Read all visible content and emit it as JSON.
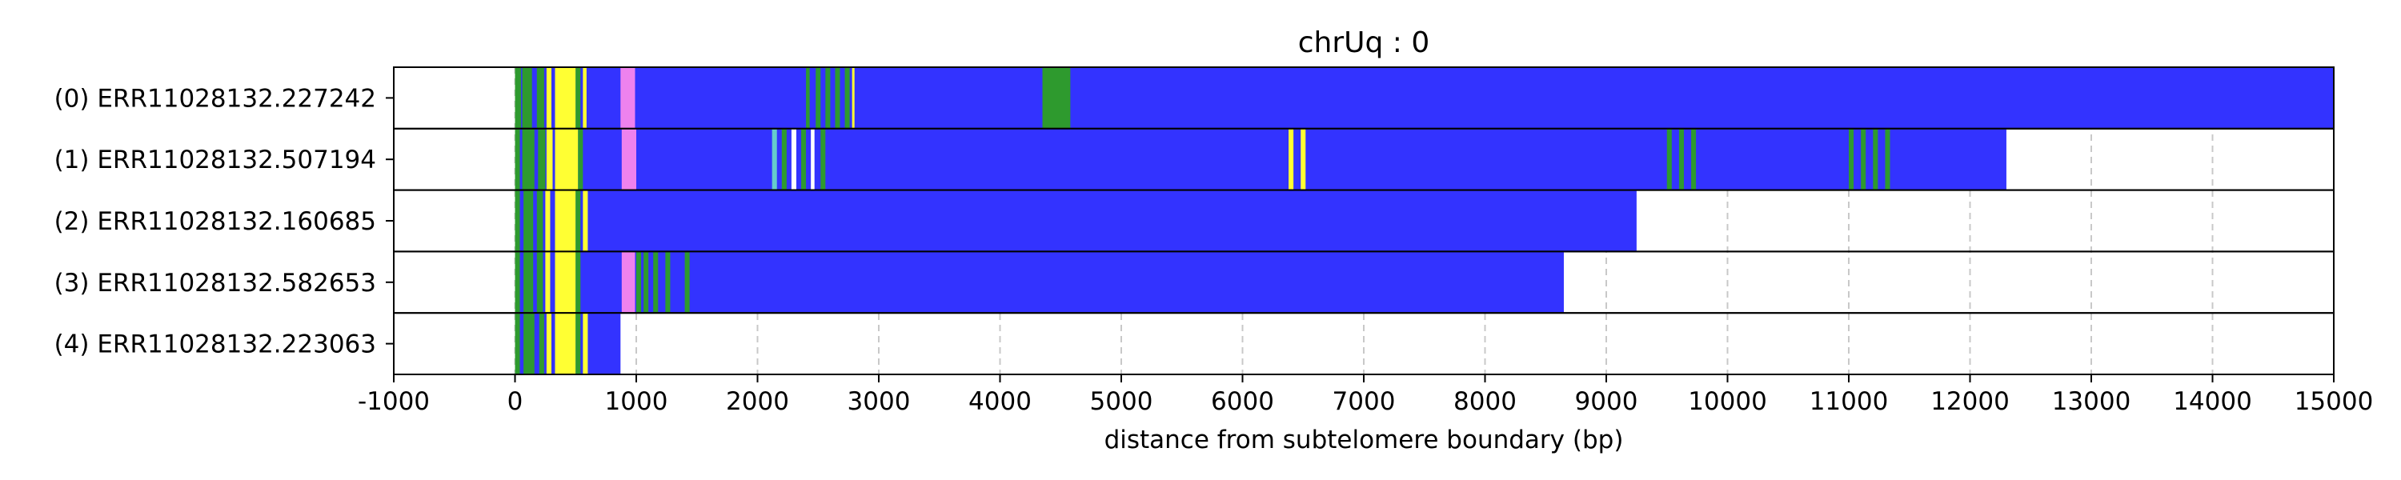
{
  "chart_data": {
    "type": "heatmap",
    "title": "chrUq : 0",
    "xlabel": "distance from subtelomere boundary (bp)",
    "ylabel": "",
    "xlim": [
      -1000,
      15000
    ],
    "xticks": [
      -1000,
      0,
      1000,
      2000,
      3000,
      4000,
      5000,
      6000,
      7000,
      8000,
      9000,
      10000,
      11000,
      12000,
      13000,
      14000,
      15000
    ],
    "grid": "vertical dashed",
    "colors": {
      "blue": "#3333ff",
      "green": "#2e9a2e",
      "yellow": "#ffff33",
      "pink": "#ee82ee",
      "cyan": "#66cccc",
      "white": "#ffffff"
    },
    "reads": [
      {
        "label": "(0) ERR11028132.227242",
        "start": 0,
        "end": 15000,
        "base": "blue",
        "segments": [
          {
            "x0": 0,
            "x1": 50,
            "color": "green"
          },
          {
            "x0": 60,
            "x1": 140,
            "color": "green"
          },
          {
            "x0": 180,
            "x1": 240,
            "color": "green"
          },
          {
            "x0": 260,
            "x1": 300,
            "color": "yellow"
          },
          {
            "x0": 330,
            "x1": 500,
            "color": "yellow"
          },
          {
            "x0": 500,
            "x1": 540,
            "color": "green"
          },
          {
            "x0": 560,
            "x1": 590,
            "color": "yellow"
          },
          {
            "x0": 870,
            "x1": 990,
            "color": "pink"
          },
          {
            "x0": 2400,
            "x1": 2430,
            "color": "green"
          },
          {
            "x0": 2480,
            "x1": 2520,
            "color": "green"
          },
          {
            "x0": 2560,
            "x1": 2600,
            "color": "green"
          },
          {
            "x0": 2640,
            "x1": 2680,
            "color": "green"
          },
          {
            "x0": 2720,
            "x1": 2760,
            "color": "green"
          },
          {
            "x0": 2780,
            "x1": 2800,
            "color": "yellow"
          },
          {
            "x0": 4350,
            "x1": 4580,
            "color": "green"
          }
        ]
      },
      {
        "label": "(1) ERR11028132.507194",
        "start": 0,
        "end": 12300,
        "base": "blue",
        "segments": [
          {
            "x0": 0,
            "x1": 40,
            "color": "green"
          },
          {
            "x0": 60,
            "x1": 160,
            "color": "green"
          },
          {
            "x0": 190,
            "x1": 250,
            "color": "green"
          },
          {
            "x0": 260,
            "x1": 310,
            "color": "yellow"
          },
          {
            "x0": 330,
            "x1": 520,
            "color": "yellow"
          },
          {
            "x0": 520,
            "x1": 560,
            "color": "green"
          },
          {
            "x0": 880,
            "x1": 1000,
            "color": "pink"
          },
          {
            "x0": 2120,
            "x1": 2160,
            "color": "cyan"
          },
          {
            "x0": 2200,
            "x1": 2240,
            "color": "green"
          },
          {
            "x0": 2280,
            "x1": 2320,
            "color": "white"
          },
          {
            "x0": 2360,
            "x1": 2400,
            "color": "green"
          },
          {
            "x0": 2440,
            "x1": 2470,
            "color": "white"
          },
          {
            "x0": 2520,
            "x1": 2560,
            "color": "green"
          },
          {
            "x0": 6380,
            "x1": 6420,
            "color": "yellow"
          },
          {
            "x0": 6480,
            "x1": 6520,
            "color": "yellow"
          },
          {
            "x0": 9500,
            "x1": 9540,
            "color": "green"
          },
          {
            "x0": 9600,
            "x1": 9640,
            "color": "green"
          },
          {
            "x0": 9700,
            "x1": 9740,
            "color": "green"
          },
          {
            "x0": 11000,
            "x1": 11040,
            "color": "green"
          },
          {
            "x0": 11100,
            "x1": 11140,
            "color": "green"
          },
          {
            "x0": 11200,
            "x1": 11240,
            "color": "green"
          },
          {
            "x0": 11300,
            "x1": 11340,
            "color": "green"
          }
        ]
      },
      {
        "label": "(2) ERR11028132.160685",
        "start": 0,
        "end": 9250,
        "base": "blue",
        "segments": [
          {
            "x0": 0,
            "x1": 40,
            "color": "green"
          },
          {
            "x0": 70,
            "x1": 150,
            "color": "green"
          },
          {
            "x0": 180,
            "x1": 230,
            "color": "green"
          },
          {
            "x0": 250,
            "x1": 290,
            "color": "yellow"
          },
          {
            "x0": 330,
            "x1": 500,
            "color": "yellow"
          },
          {
            "x0": 500,
            "x1": 540,
            "color": "green"
          },
          {
            "x0": 560,
            "x1": 600,
            "color": "yellow"
          }
        ]
      },
      {
        "label": "(3) ERR11028132.582653",
        "start": 0,
        "end": 8650,
        "base": "blue",
        "segments": [
          {
            "x0": 0,
            "x1": 40,
            "color": "green"
          },
          {
            "x0": 70,
            "x1": 150,
            "color": "green"
          },
          {
            "x0": 180,
            "x1": 230,
            "color": "green"
          },
          {
            "x0": 250,
            "x1": 290,
            "color": "yellow"
          },
          {
            "x0": 330,
            "x1": 500,
            "color": "yellow"
          },
          {
            "x0": 500,
            "x1": 540,
            "color": "green"
          },
          {
            "x0": 880,
            "x1": 990,
            "color": "pink"
          },
          {
            "x0": 1000,
            "x1": 1040,
            "color": "green"
          },
          {
            "x0": 1060,
            "x1": 1100,
            "color": "green"
          },
          {
            "x0": 1140,
            "x1": 1180,
            "color": "green"
          },
          {
            "x0": 1240,
            "x1": 1280,
            "color": "green"
          },
          {
            "x0": 1400,
            "x1": 1440,
            "color": "green"
          }
        ]
      },
      {
        "label": "(4) ERR11028132.223063",
        "start": 0,
        "end": 870,
        "base": "blue",
        "segments": [
          {
            "x0": 0,
            "x1": 40,
            "color": "green"
          },
          {
            "x0": 70,
            "x1": 160,
            "color": "green"
          },
          {
            "x0": 200,
            "x1": 240,
            "color": "green"
          },
          {
            "x0": 260,
            "x1": 300,
            "color": "yellow"
          },
          {
            "x0": 330,
            "x1": 500,
            "color": "yellow"
          },
          {
            "x0": 500,
            "x1": 540,
            "color": "green"
          },
          {
            "x0": 560,
            "x1": 600,
            "color": "yellow"
          }
        ]
      }
    ]
  }
}
